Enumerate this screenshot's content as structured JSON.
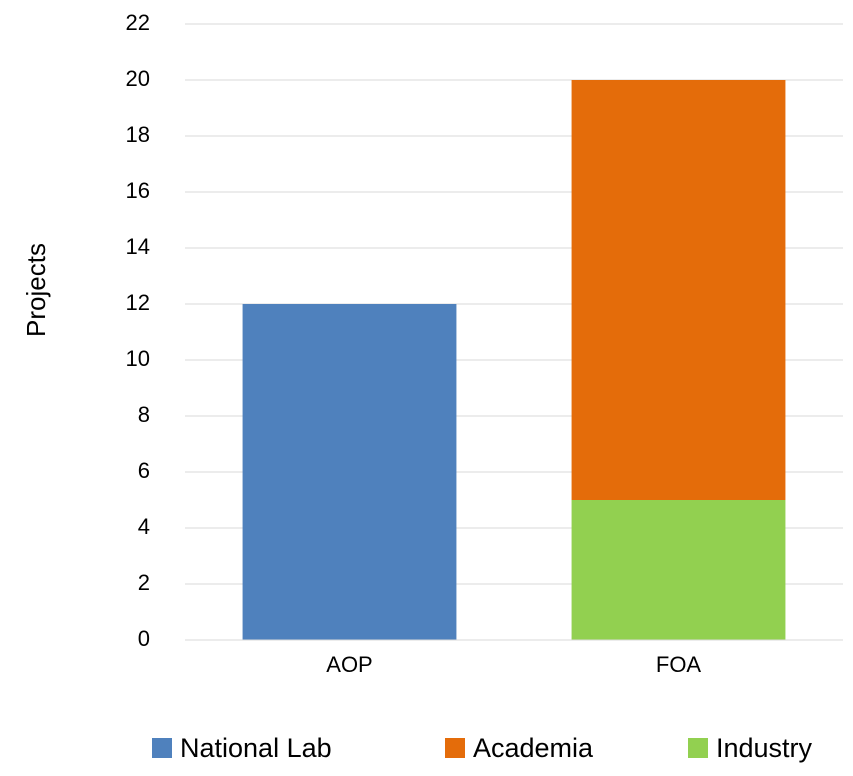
{
  "chart_data": {
    "type": "bar",
    "stacked": true,
    "y_label": "Projects",
    "categories": [
      "AOP",
      "FOA"
    ],
    "series": [
      {
        "name": "National Lab",
        "color": "#4f81bd",
        "values": [
          12,
          0
        ]
      },
      {
        "name": "Academia",
        "color": "#e46c0a",
        "values": [
          0,
          15
        ]
      },
      {
        "name": "Industry",
        "color": "#92d050",
        "values": [
          0,
          5
        ]
      }
    ],
    "ylim": [
      0,
      22
    ],
    "yticks": [
      0,
      2,
      4,
      6,
      8,
      10,
      12,
      14,
      16,
      18,
      20,
      22
    ],
    "grid": true,
    "legend": "bottom"
  }
}
